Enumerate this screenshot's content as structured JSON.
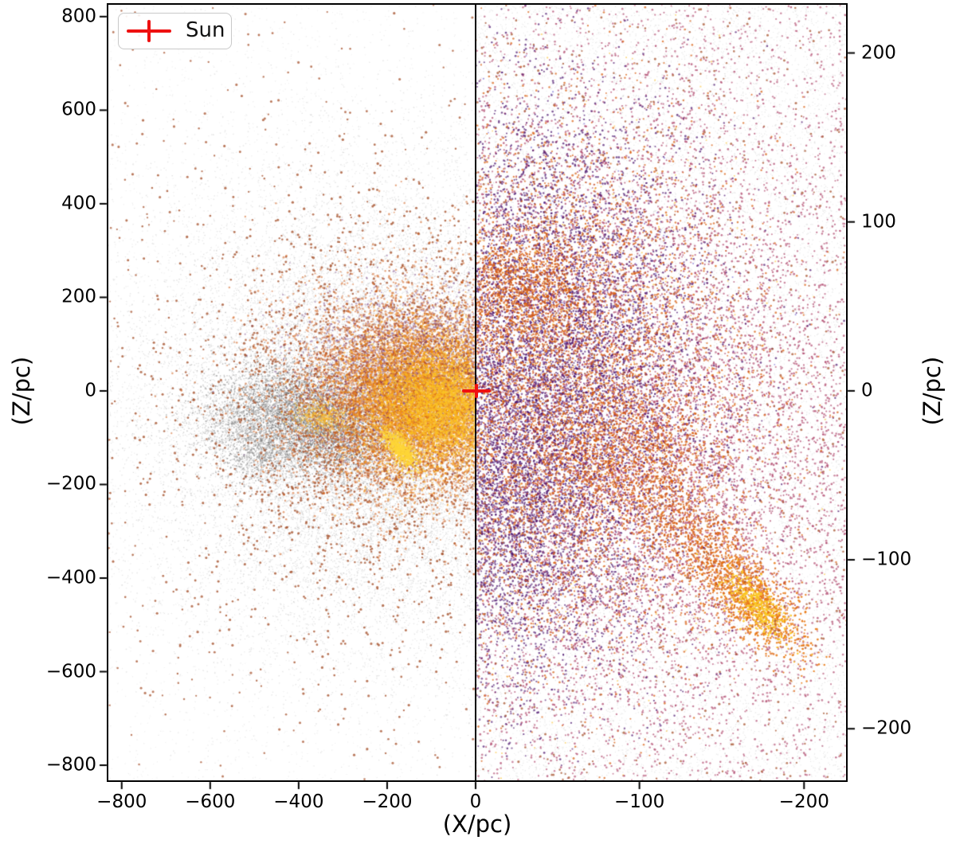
{
  "figure": {
    "background": "#ffffff",
    "xlabel": "(X/pc)",
    "ylabel_left": "(Z/pc)",
    "ylabel_right": "(Z/pc)",
    "legend": {
      "label": "Sun",
      "marker": "red-errorbar-cross",
      "marker_color": "#ee1010",
      "position": "upper-left"
    }
  },
  "chart_data": {
    "type": "scatter",
    "title": "",
    "xlabel": "(X/pc)",
    "ylabel": "(Z/pc)",
    "grid": false,
    "sun": {
      "x": 0,
      "z": 0,
      "label": "Sun",
      "color": "#ee1010"
    },
    "series_description": [
      {
        "name": "background-field-stars",
        "color": "#c3c3c3"
      },
      {
        "name": "foreground-dark-cloud",
        "color": "#767676"
      },
      {
        "name": "outer-members-sienna",
        "color": "#a85632"
      },
      {
        "name": "core-members-orange",
        "color": "#d85e0f"
      },
      {
        "name": "core-members-yellow",
        "color": "#fcc323"
      },
      {
        "name": "zoom-members-purple",
        "color": "#4c146e"
      },
      {
        "name": "zoom-members-rose",
        "color": "#ad4168"
      }
    ],
    "panels": [
      {
        "name": "wide-view",
        "xlim": [
          -832,
          0
        ],
        "ylim": [
          827,
          -834
        ],
        "xticks": {
          "values": [
            -800,
            -600,
            -400,
            -200,
            0
          ],
          "labels": [
            "−800",
            "−600",
            "−400",
            "−200",
            "0"
          ]
        },
        "yticks": {
          "side": "left",
          "values": [
            800,
            600,
            400,
            200,
            0,
            -200,
            -400,
            -600,
            -800
          ],
          "labels": [
            "800",
            "600",
            "400",
            "200",
            "0",
            "−200",
            "−400",
            "−600",
            "−800"
          ]
        },
        "clusters": [
          {
            "kind": "gauss",
            "n": 24000,
            "cx": -175,
            "cz": -40,
            "sx": 300,
            "sz": 265,
            "size": 1.3,
            "color": "rgba(190,190,190,0.40)"
          },
          {
            "kind": "uniform",
            "n": 3500,
            "size": 1.2,
            "color": "rgba(200,200,200,0.30)"
          },
          {
            "kind": "gauss",
            "n": 6000,
            "cx": -230,
            "cz": -60,
            "sx": 185,
            "sz": 160,
            "size": 1.3,
            "color": "rgba(168,168,168,0.45)"
          },
          {
            "kind": "gauss",
            "n": 2600,
            "cx": -420,
            "cz": -35,
            "sx": 75,
            "sz": 55,
            "size": 1.6,
            "color": "rgba(118,118,118,0.50)"
          },
          {
            "kind": "gauss",
            "n": 1800,
            "cx": -320,
            "cz": -95,
            "sx": 65,
            "sz": 48,
            "size": 1.6,
            "color": "rgba(118,118,118,0.50)"
          },
          {
            "kind": "gauss",
            "n": 800,
            "cx": -490,
            "cz": -130,
            "sx": 50,
            "sz": 38,
            "size": 1.5,
            "color": "rgba(128,128,128,0.45)"
          },
          {
            "kind": "gauss",
            "n": 700,
            "cx": -555,
            "cz": -55,
            "sx": 70,
            "sz": 45,
            "size": 1.4,
            "color": "rgba(135,135,135,0.40)"
          },
          {
            "kind": "gauss",
            "n": 2600,
            "cx": -190,
            "cz": -40,
            "sx": 275,
            "sz": 245,
            "size": 2.8,
            "color": "rgba(168,86,50,0.80)"
          },
          {
            "kind": "uniform",
            "n": 300,
            "size": 2.8,
            "color": "rgba(168,86,50,0.75)"
          },
          {
            "kind": "gauss",
            "n": 8000,
            "cx": -140,
            "cz": -5,
            "sx": 150,
            "sz": 115,
            "size": 2.5,
            "color": "rgba(208,88,16,0.50)"
          },
          {
            "kind": "gauss",
            "n": 3000,
            "cx": -115,
            "cz": 40,
            "sx": 135,
            "sz": 90,
            "size": 2.2,
            "color": "rgba(108,52,122,0.40)"
          },
          {
            "kind": "gauss",
            "n": 6000,
            "cx": -110,
            "cz": -25,
            "sx": 95,
            "sz": 78,
            "size": 2.4,
            "color": "rgba(242,145,18,0.55)"
          },
          {
            "kind": "gauss",
            "n": 3200,
            "cx": -80,
            "cz": -35,
            "sx": 70,
            "sz": 54,
            "size": 2.2,
            "color": "rgba(252,195,35,0.60)"
          },
          {
            "kind": "gauss",
            "n": 600,
            "cx": -170,
            "cz": -125,
            "sx": 24,
            "sz": 10,
            "angle": -45,
            "size": 2.3,
            "color": "rgba(253,213,55,0.75)"
          },
          {
            "kind": "gauss",
            "n": 350,
            "cx": -350,
            "cz": -55,
            "sx": 30,
            "sz": 16,
            "size": 2.1,
            "color": "rgba(250,188,40,0.50)"
          }
        ]
      },
      {
        "name": "zoom-view",
        "xlim": [
          0,
          -226
        ],
        "ylim": [
          229,
          -231
        ],
        "xticks": {
          "values": [
            -100,
            -200
          ],
          "labels": [
            "−100",
            "−200"
          ]
        },
        "yticks": {
          "side": "right",
          "values": [
            200,
            100,
            0,
            -100,
            -200
          ],
          "labels": [
            "200",
            "100",
            "0",
            "−100",
            "−200"
          ]
        },
        "clusters": [
          {
            "kind": "uniform",
            "n": 17000,
            "size": 1.2,
            "color": "rgba(196,196,196,0.38)"
          },
          {
            "kind": "gauss",
            "n": 7000,
            "cx": -65,
            "cz": 0,
            "sx": 95,
            "sz": 100,
            "size": 2.4,
            "color": "rgba(173,65,104,0.70)"
          },
          {
            "kind": "uniform",
            "n": 3200,
            "size": 2.4,
            "color": "rgba(173,65,104,0.60)"
          },
          {
            "kind": "gauss",
            "n": 2500,
            "cx": -110,
            "cz": -60,
            "sx": 70,
            "sz": 70,
            "size": 2.4,
            "color": "rgba(173,65,104,0.65)"
          },
          {
            "kind": "gauss",
            "n": 8000,
            "cx": -35,
            "cz": 15,
            "sx": 55,
            "sz": 80,
            "size": 2.4,
            "color": "rgba(76,20,110,0.70)"
          },
          {
            "kind": "gauss",
            "n": 2500,
            "cx": -18,
            "cz": -70,
            "sx": 35,
            "sz": 55,
            "size": 2.4,
            "color": "rgba(76,20,110,0.60)"
          },
          {
            "kind": "gauss",
            "n": 500,
            "cx": -35,
            "cz": 25,
            "sx": 50,
            "sz": 65,
            "size": 1.9,
            "color": "rgba(85,70,200,0.50)"
          },
          {
            "kind": "gauss",
            "n": 6500,
            "cx": -45,
            "cz": 0,
            "sx": 65,
            "sz": 80,
            "size": 2.4,
            "color": "rgba(216,94,15,0.70)"
          },
          {
            "kind": "gauss",
            "n": 1100,
            "cx": -28,
            "cz": 62,
            "sx": 24,
            "sz": 18,
            "size": 2.4,
            "color": "rgba(216,94,15,0.75)"
          },
          {
            "kind": "gauss",
            "n": 900,
            "cx": -95,
            "cz": -38,
            "sx": 28,
            "sz": 20,
            "size": 2.4,
            "color": "rgba(216,94,15,0.75)"
          },
          {
            "kind": "gauss",
            "n": 900,
            "cx": -140,
            "cz": -95,
            "sx": 30,
            "sz": 12,
            "angle": 45,
            "size": 2.4,
            "color": "rgba(216,94,15,0.75)"
          },
          {
            "kind": "gauss",
            "n": 800,
            "cx": -172,
            "cz": -127,
            "sx": 20,
            "sz": 9,
            "angle": 45,
            "size": 2.5,
            "color": "rgba(233,120,18,0.85)"
          },
          {
            "kind": "gauss",
            "n": 380,
            "cx": -173,
            "cz": -128,
            "sx": 13,
            "sz": 5,
            "angle": 45,
            "size": 2.4,
            "color": "rgba(251,200,35,0.90)"
          },
          {
            "kind": "gauss",
            "n": 700,
            "cx": -50,
            "cz": 0,
            "sx": 70,
            "sz": 85,
            "size": 2.0,
            "color": "rgba(250,185,30,0.55)"
          },
          {
            "kind": "uniform",
            "n": 900,
            "size": 2.7,
            "color": "rgba(168,86,50,0.75)"
          }
        ]
      }
    ]
  }
}
